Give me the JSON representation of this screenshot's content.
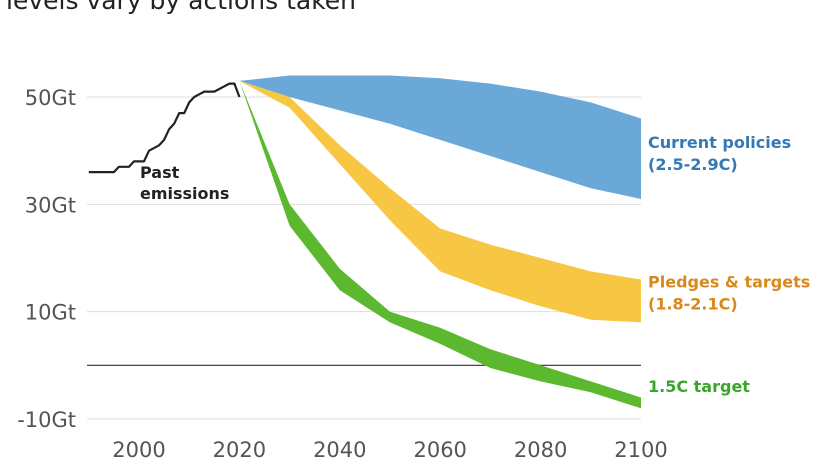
{
  "title_fragment": "levels vary by actions taken",
  "chart_data": {
    "type": "area",
    "x_ticks": [
      2000,
      2020,
      2040,
      2060,
      2080,
      2100
    ],
    "y_ticks": [
      {
        "value": 50,
        "label": "50Gt"
      },
      {
        "value": 30,
        "label": "30Gt"
      },
      {
        "value": 10,
        "label": "10Gt"
      },
      {
        "value": -10,
        "label": "-10Gt"
      }
    ],
    "xlim": [
      1990,
      2100
    ],
    "ylim": [
      -12,
      55
    ],
    "grid": true,
    "zero_line": true,
    "colors": {
      "past": "#222222",
      "current_policies": "#6aa8d8",
      "pledges": "#f7c744",
      "target_1_5": "#5cb82e",
      "current_label": "#3479b5",
      "pledges_label": "#d9891a",
      "target_label": "#3aa62b",
      "grid": "#dddddd",
      "zero": "#333333"
    },
    "series": [
      {
        "name": "Past emissions",
        "label_lines": [
          "Past",
          "emissions"
        ],
        "kind": "line",
        "x": [
          1990,
          1993,
          1995,
          1996,
          1998,
          1999,
          2001,
          2002,
          2004,
          2005,
          2006,
          2007,
          2008,
          2009,
          2010,
          2011,
          2012,
          2013,
          2014,
          2015,
          2016,
          2017,
          2018,
          2019,
          2020
        ],
        "y": [
          36,
          36,
          36,
          37,
          37,
          38,
          38,
          40,
          41,
          42,
          44,
          45,
          47,
          47,
          49,
          50,
          50.5,
          51,
          51,
          51,
          51.5,
          52,
          52.5,
          52.5,
          50
        ]
      },
      {
        "name": "Current policies (2.5-2.9C)",
        "label_lines": [
          "Current policies",
          "(2.5-2.9C)"
        ],
        "kind": "band",
        "x": [
          2020,
          2030,
          2040,
          2050,
          2060,
          2070,
          2080,
          2090,
          2100
        ],
        "upper": [
          53,
          54,
          54,
          54,
          53.5,
          52.5,
          51,
          49,
          46
        ],
        "lower": [
          53,
          50,
          47.5,
          45,
          42,
          39,
          36,
          33,
          31
        ]
      },
      {
        "name": "Pledges & targets (1.8-2.1C)",
        "label_lines": [
          "Pledges & targets",
          "(1.8-2.1C)"
        ],
        "kind": "band",
        "x": [
          2020,
          2030,
          2040,
          2050,
          2060,
          2070,
          2080,
          2090,
          2100
        ],
        "upper": [
          53,
          50,
          41,
          33,
          25.5,
          22.5,
          20,
          17.5,
          16
        ],
        "lower": [
          53,
          48,
          37.5,
          27,
          17.5,
          14,
          11,
          8.5,
          8
        ]
      },
      {
        "name": "1.5C target",
        "label_lines": [
          "1.5C target"
        ],
        "kind": "band",
        "x": [
          2020,
          2030,
          2040,
          2050,
          2060,
          2070,
          2080,
          2090,
          2100
        ],
        "upper": [
          53,
          30,
          18,
          10,
          7,
          3,
          0,
          -3,
          -6
        ],
        "lower": [
          53,
          26,
          14,
          8,
          4,
          -0.5,
          -3,
          -5,
          -8
        ]
      }
    ]
  }
}
